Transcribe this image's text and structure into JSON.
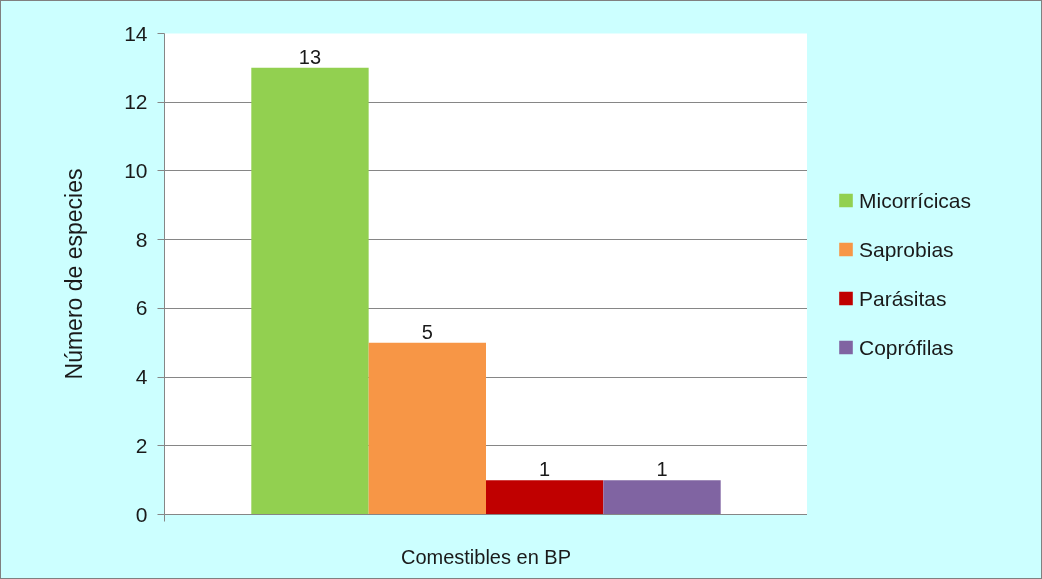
{
  "chart_data": {
    "type": "bar",
    "ylabel": "Número de especies",
    "categories": [
      "Comestibles en BP"
    ],
    "series": [
      {
        "name": "Micorrícicas",
        "color": "#92d050",
        "values": [
          13
        ]
      },
      {
        "name": "Saprobias",
        "color": "#f79646",
        "values": [
          5
        ]
      },
      {
        "name": "Parásitas",
        "color": "#c00000",
        "values": [
          1
        ]
      },
      {
        "name": "Coprófilas",
        "color": "#8064a2",
        "values": [
          1
        ]
      }
    ],
    "ylim": [
      0,
      14
    ],
    "yticks": [
      0,
      2,
      4,
      6,
      8,
      10,
      12,
      14
    ],
    "grid": "y",
    "legend": "right",
    "data_labels": true
  }
}
